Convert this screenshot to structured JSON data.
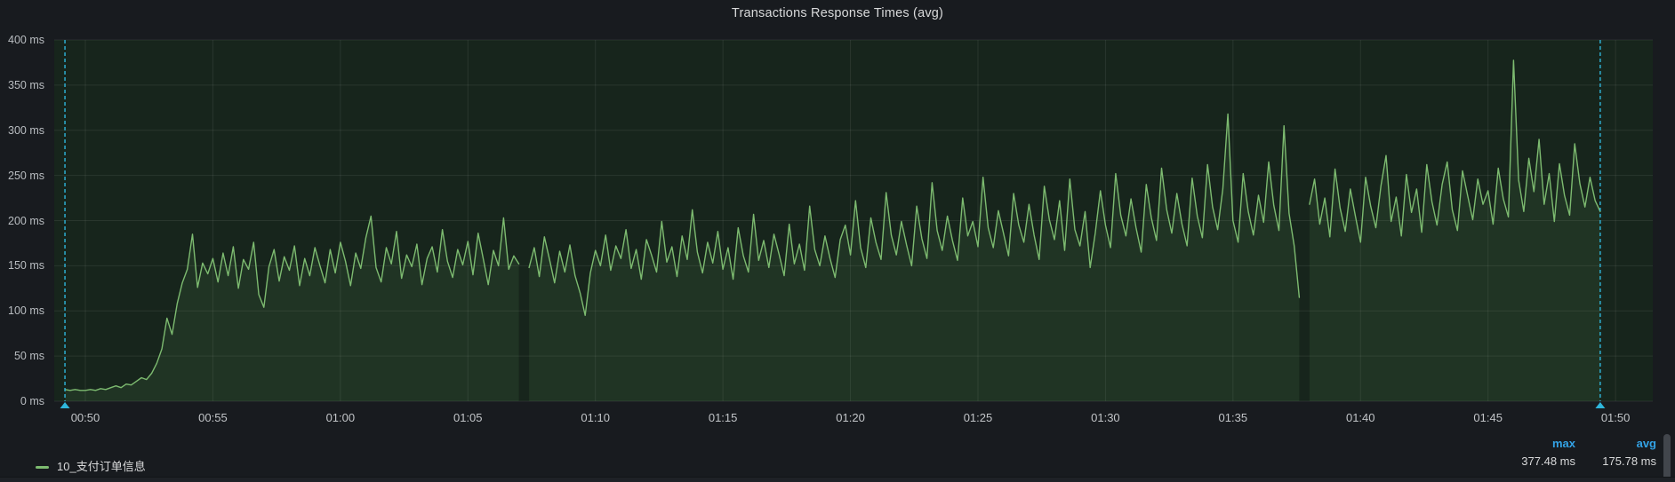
{
  "panel": {
    "title": "Transactions Response Times (avg)"
  },
  "legend": {
    "stats_headers": [
      "max",
      "avg"
    ],
    "series": [
      {
        "label": "10_支付订单信息",
        "max": "377.48 ms",
        "avg": "175.78 ms",
        "color": "#7dbb70"
      }
    ]
  },
  "chart_data": {
    "type": "line",
    "title": "Transactions Response Times (avg)",
    "unit": "ms",
    "grid": true,
    "legend_position": "bottom-left",
    "colors": {
      "line": "#7dbb70",
      "fill": "rgba(119,189,109,0.10)",
      "plot_bg": "#17251c",
      "gridline": "rgba(255,255,255,0.08)",
      "annotation": "#2fb6dc",
      "stat_header": "#33a2e5"
    },
    "y_axis": {
      "range": [
        0,
        400
      ],
      "tick_values": [
        0,
        50,
        100,
        150,
        200,
        250,
        300,
        350,
        400
      ],
      "tick_labels": [
        "0 ms",
        "50 ms",
        "100 ms",
        "150 ms",
        "200 ms",
        "250 ms",
        "300 ms",
        "350 ms",
        "400 ms"
      ]
    },
    "x_axis": {
      "range_min": [
        48.78,
        111.46
      ],
      "tick_minutes": [
        50,
        55,
        60,
        65,
        70,
        75,
        80,
        85,
        90,
        95,
        100,
        105,
        110
      ],
      "tick_labels": [
        "00:50",
        "00:55",
        "01:00",
        "01:05",
        "01:10",
        "01:15",
        "01:20",
        "01:25",
        "01:30",
        "01:35",
        "01:40",
        "01:45",
        "01:50"
      ]
    },
    "annotations": {
      "times_min": [
        49.2,
        109.4
      ]
    },
    "legend_stats": {
      "max_ms": 377.48,
      "avg_ms": 175.78
    },
    "series": [
      {
        "name": "10_支付订单信息",
        "start_min": 49.2,
        "step_sec": 12,
        "values_ms": [
          13,
          12,
          13,
          12,
          12,
          13,
          12,
          14,
          13,
          15,
          17,
          15,
          19,
          18,
          22,
          26,
          24,
          31,
          42,
          58,
          92,
          74,
          108,
          131,
          146,
          185,
          126,
          153,
          141,
          158,
          132,
          164,
          139,
          171,
          125,
          157,
          146,
          176,
          118,
          104,
          149,
          168,
          133,
          160,
          145,
          172,
          128,
          158,
          139,
          170,
          150,
          131,
          168,
          142,
          176,
          155,
          128,
          164,
          147,
          181,
          205,
          148,
          132,
          170,
          152,
          188,
          136,
          162,
          149,
          174,
          129,
          158,
          171,
          143,
          190,
          155,
          137,
          168,
          151,
          177,
          140,
          186,
          158,
          129,
          167,
          150,
          203,
          146,
          161,
          152,
          null,
          148,
          170,
          138,
          182,
          157,
          131,
          166,
          143,
          173,
          139,
          120,
          95,
          142,
          167,
          150,
          184,
          145,
          172,
          158,
          190,
          147,
          168,
          135,
          179,
          162,
          143,
          199,
          154,
          171,
          138,
          183,
          157,
          212,
          165,
          142,
          176,
          153,
          188,
          146,
          170,
          135,
          192,
          161,
          143,
          207,
          156,
          178,
          148,
          185,
          163,
          139,
          196,
          152,
          174,
          145,
          216,
          168,
          150,
          183,
          158,
          137,
          179,
          195,
          162,
          222,
          170,
          148,
          203,
          176,
          157,
          231,
          184,
          162,
          199,
          173,
          150,
          216,
          180,
          158,
          242,
          189,
          167,
          205,
          178,
          156,
          225,
          183,
          199,
          171,
          248,
          192,
          170,
          211,
          186,
          161,
          230,
          195,
          176,
          218,
          184,
          157,
          238,
          201,
          179,
          222,
          167,
          246,
          190,
          172,
          210,
          148,
          186,
          233,
          195,
          170,
          252,
          206,
          183,
          224,
          192,
          165,
          240,
          203,
          178,
          258,
          212,
          186,
          230,
          196,
          172,
          247,
          205,
          181,
          262,
          215,
          190,
          235,
          318,
          200,
          176,
          252,
          210,
          184,
          228,
          198,
          265,
          217,
          189,
          305,
          208,
          172,
          115,
          null,
          218,
          246,
          196,
          225,
          182,
          257,
          214,
          188,
          235,
          205,
          176,
          248,
          216,
          192,
          238,
          272,
          199,
          226,
          183,
          251,
          209,
          235,
          187,
          262,
          221,
          195,
          240,
          265,
          212,
          189,
          255,
          228,
          201,
          246,
          218,
          233,
          196,
          258,
          224,
          204,
          377.48,
          245,
          210,
          269,
          232,
          290,
          218,
          252,
          199,
          263,
          228,
          206,
          285,
          241,
          215,
          248,
          222,
          210
        ]
      }
    ]
  }
}
